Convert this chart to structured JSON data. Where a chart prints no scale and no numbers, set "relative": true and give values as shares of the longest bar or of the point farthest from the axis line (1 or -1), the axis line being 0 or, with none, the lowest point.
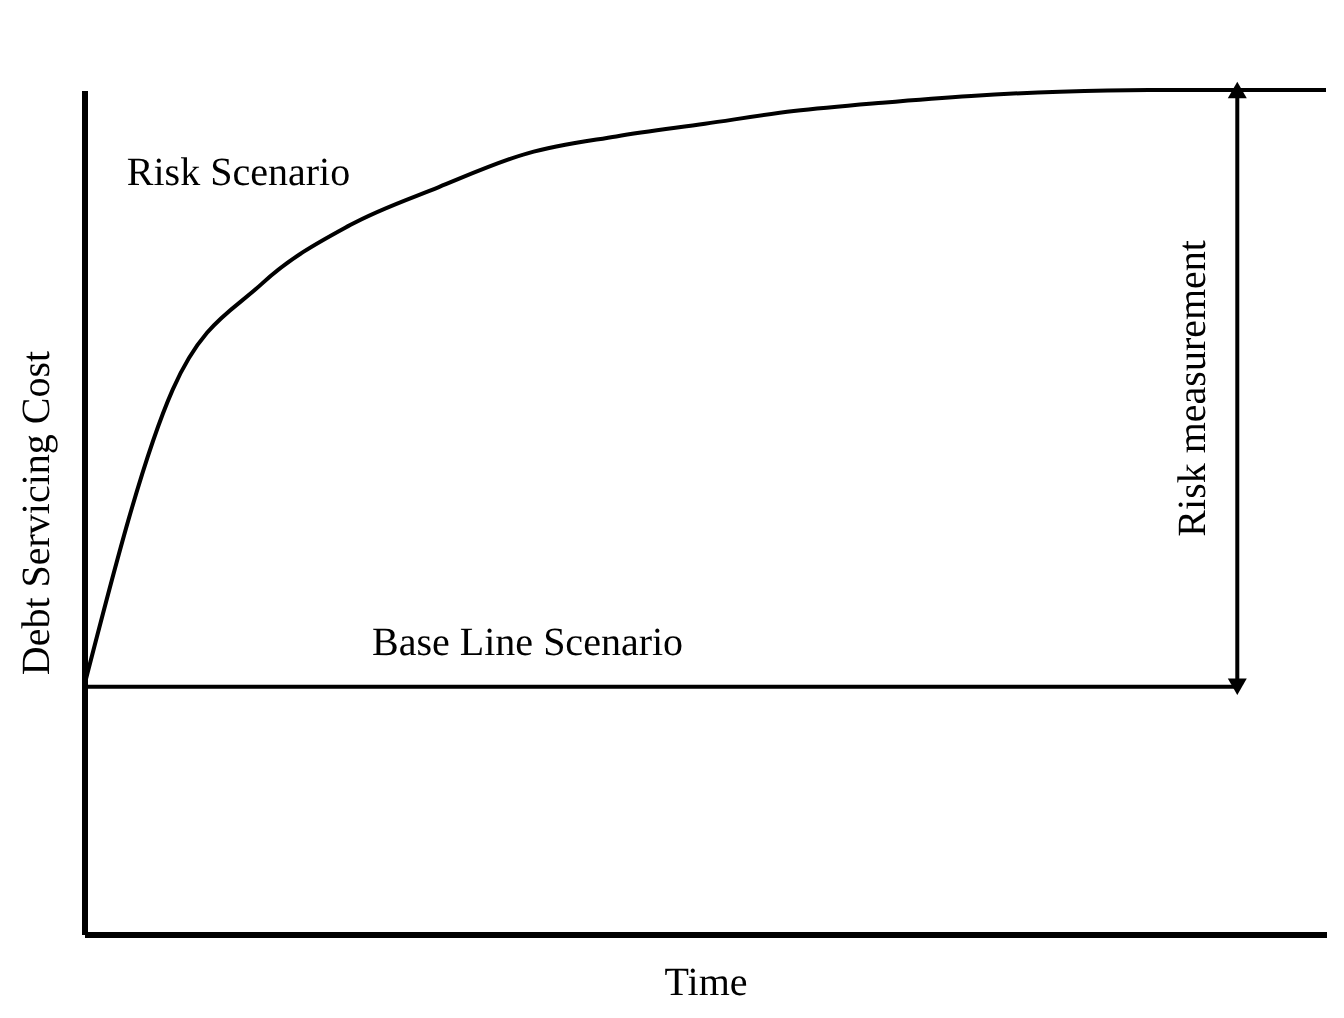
{
  "chart_data": {
    "type": "line",
    "relative": true,
    "xlabel": "Time",
    "ylabel": "Debt Servicing Cost",
    "categories": [
      null,
      null,
      null,
      null,
      null,
      null,
      null,
      null,
      null,
      null,
      null,
      null,
      null,
      null,
      null
    ],
    "series": [
      {
        "name": "Risk Scenario",
        "color": "#000000",
        "values": [
          0.293,
          0.645,
          0.77,
          0.84,
          0.885,
          0.925,
          0.945,
          0.96,
          0.975,
          0.985,
          0.993,
          0.998,
          1,
          1,
          1
        ]
      },
      {
        "name": "Base Line Scenario",
        "color": "#000000",
        "values": [
          0.293,
          0.293,
          0.293,
          0.293,
          0.293,
          0.293,
          0.293,
          0.293,
          0.293,
          0.293,
          0.293,
          0.293,
          0.293,
          0.293,
          null
        ]
      }
    ],
    "annotations": [
      "Risk measurement"
    ],
    "legend": false,
    "grid": false,
    "marker": "none",
    "line_style": "solid",
    "tick_labels": false
  }
}
